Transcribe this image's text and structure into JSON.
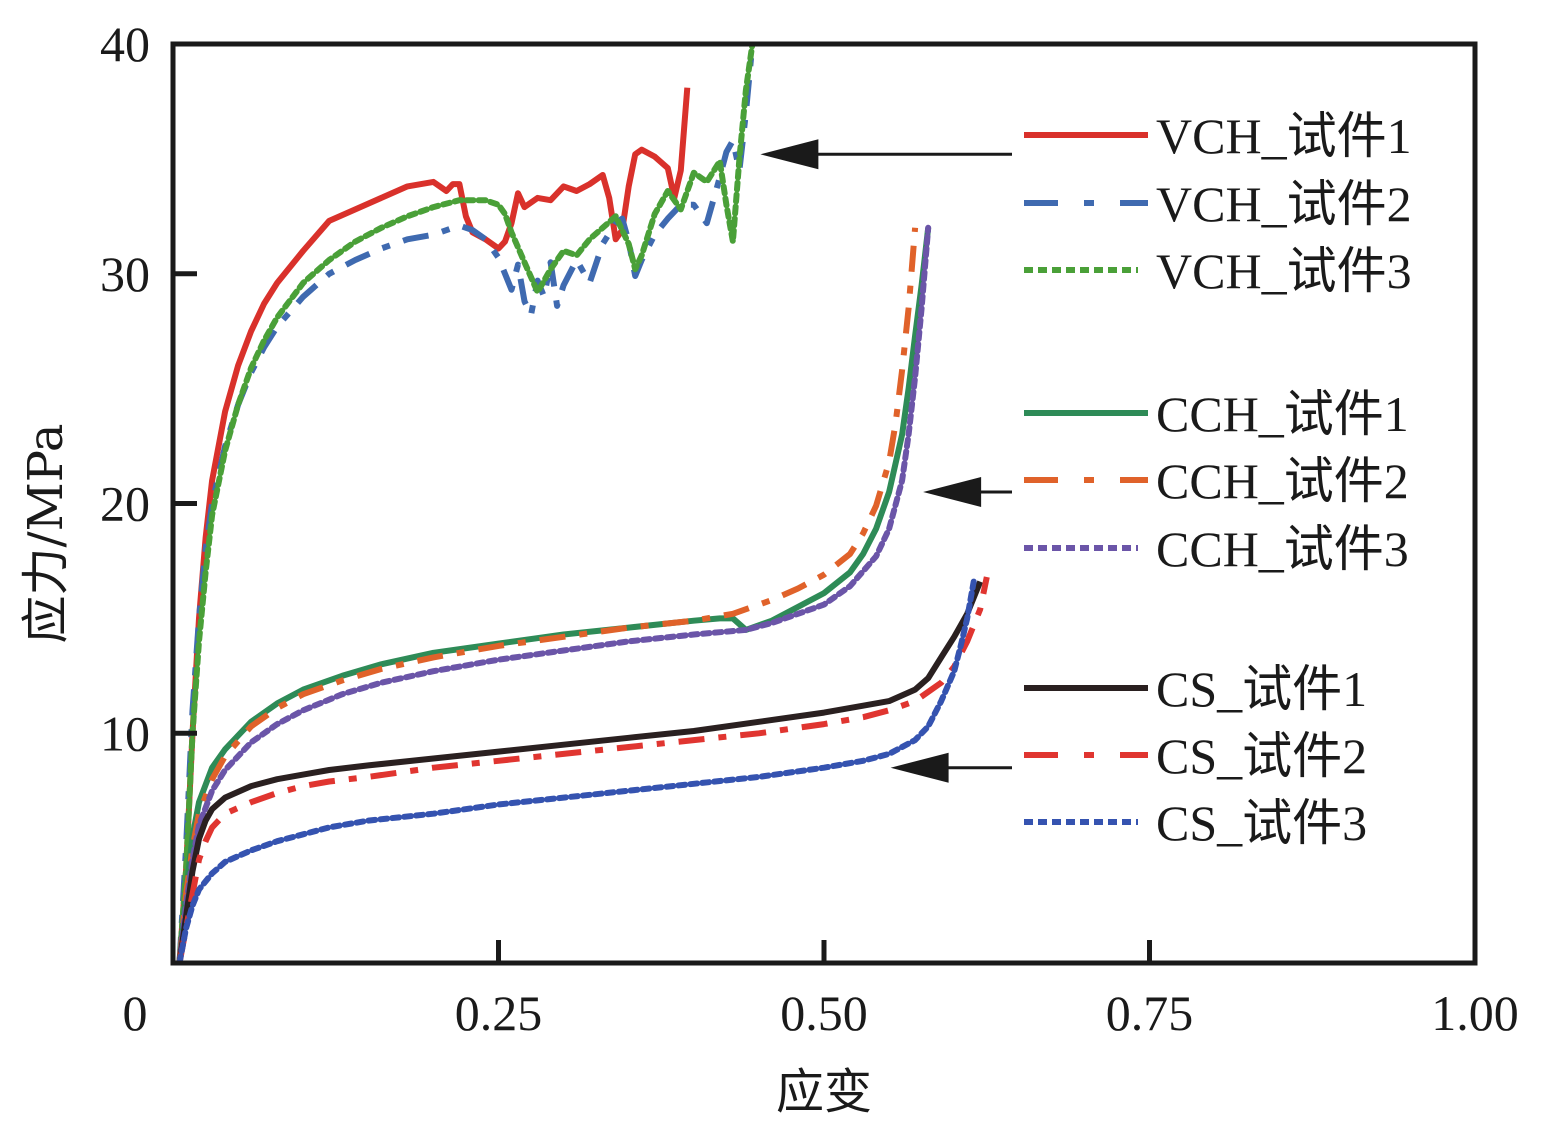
{
  "chart_data": {
    "type": "line",
    "title": "",
    "xlabel": "应变",
    "ylabel": "应力/MPa",
    "xlim": [
      0,
      1.0
    ],
    "ylim": [
      0,
      40
    ],
    "xticks": [
      0,
      0.25,
      0.5,
      0.75,
      1.0
    ],
    "xtick_labels": [
      "0",
      "0.25",
      "0.50",
      "0.75",
      "1.00"
    ],
    "yticks": [
      10,
      20,
      30,
      40
    ],
    "ytick_labels": [
      "10",
      "20",
      "30",
      "40"
    ],
    "grid": false,
    "legend_position": "right",
    "series": [
      {
        "name": "VCH_试件1",
        "color": "#d9312b",
        "style": "solid",
        "group": "VCH",
        "x": [
          0.005,
          0.01,
          0.015,
          0.02,
          0.025,
          0.03,
          0.04,
          0.05,
          0.06,
          0.07,
          0.08,
          0.1,
          0.12,
          0.14,
          0.16,
          0.18,
          0.2,
          0.21,
          0.215,
          0.22,
          0.225,
          0.23,
          0.24,
          0.25,
          0.255,
          0.26,
          0.265,
          0.27,
          0.28,
          0.29,
          0.3,
          0.31,
          0.32,
          0.33,
          0.335,
          0.34,
          0.345,
          0.35,
          0.355,
          0.36,
          0.37,
          0.38,
          0.385,
          0.39,
          0.395
        ],
        "y": [
          0,
          4,
          10,
          15,
          18.5,
          21,
          24,
          26,
          27.5,
          28.7,
          29.6,
          31,
          32.3,
          32.8,
          33.3,
          33.8,
          34,
          33.6,
          33.9,
          33.9,
          32.5,
          31.8,
          31.5,
          31.1,
          31.4,
          32.2,
          33.5,
          32.9,
          33.3,
          33.2,
          33.8,
          33.6,
          33.9,
          34.3,
          33.3,
          31.5,
          31.9,
          33.8,
          35.2,
          35.4,
          35.1,
          34.6,
          33.3,
          34.5,
          38.1
        ]
      },
      {
        "name": "VCH_试件2",
        "color": "#3f6ab0",
        "style": "dashdot",
        "group": "VCH",
        "x": [
          0.005,
          0.01,
          0.015,
          0.02,
          0.025,
          0.03,
          0.04,
          0.05,
          0.06,
          0.07,
          0.08,
          0.1,
          0.12,
          0.14,
          0.16,
          0.18,
          0.2,
          0.22,
          0.23,
          0.24,
          0.25,
          0.26,
          0.265,
          0.27,
          0.275,
          0.28,
          0.285,
          0.29,
          0.295,
          0.3,
          0.31,
          0.32,
          0.33,
          0.34,
          0.345,
          0.35,
          0.355,
          0.36,
          0.37,
          0.38,
          0.39,
          0.4,
          0.41,
          0.42,
          0.425,
          0.43,
          0.435,
          0.44,
          0.445
        ],
        "y": [
          0,
          5,
          11,
          15,
          18,
          20,
          22.5,
          24.3,
          25.7,
          26.8,
          27.7,
          29,
          30,
          30.6,
          31.1,
          31.5,
          31.7,
          32.1,
          31.9,
          31.5,
          30.7,
          29.3,
          30.4,
          28.8,
          28.2,
          29.7,
          29.0,
          30.5,
          28.6,
          29.5,
          30.6,
          29.6,
          31.3,
          32.2,
          32.4,
          31.4,
          29.9,
          30.6,
          31.7,
          32.4,
          33.0,
          33.0,
          32.2,
          34.2,
          35.3,
          35.8,
          34.5,
          37.0,
          40.0
        ]
      },
      {
        "name": "VCH_试件3",
        "color": "#4aa038",
        "style": "dotted",
        "group": "VCH",
        "x": [
          0.005,
          0.01,
          0.015,
          0.02,
          0.025,
          0.03,
          0.04,
          0.05,
          0.06,
          0.07,
          0.08,
          0.1,
          0.12,
          0.14,
          0.16,
          0.18,
          0.2,
          0.22,
          0.24,
          0.25,
          0.255,
          0.26,
          0.27,
          0.28,
          0.29,
          0.3,
          0.31,
          0.32,
          0.33,
          0.34,
          0.35,
          0.355,
          0.36,
          0.37,
          0.38,
          0.39,
          0.4,
          0.41,
          0.42,
          0.425,
          0.43,
          0.435,
          0.44,
          0.445
        ],
        "y": [
          0,
          4,
          10,
          14,
          17,
          19.5,
          22.3,
          24.3,
          25.9,
          27.1,
          28.1,
          29.6,
          30.6,
          31.4,
          32.0,
          32.5,
          32.9,
          33.2,
          33.2,
          33.0,
          32.6,
          31.8,
          30.5,
          29.2,
          30.2,
          31.0,
          30.8,
          31.5,
          32.0,
          32.5,
          31.3,
          30.2,
          30.8,
          32.6,
          33.6,
          32.8,
          34.4,
          34.0,
          34.9,
          33.0,
          31.4,
          35.0,
          38.0,
          40.0
        ]
      },
      {
        "name": "CCH_试件1",
        "color": "#2e8b57",
        "style": "solid",
        "group": "CCH",
        "x": [
          0.005,
          0.01,
          0.015,
          0.02,
          0.03,
          0.04,
          0.06,
          0.08,
          0.1,
          0.13,
          0.16,
          0.2,
          0.25,
          0.3,
          0.35,
          0.4,
          0.42,
          0.43,
          0.44,
          0.46,
          0.48,
          0.5,
          0.52,
          0.53,
          0.54,
          0.55,
          0.56,
          0.565,
          0.57,
          0.575,
          0.58
        ],
        "y": [
          0,
          3,
          5.5,
          7,
          8.5,
          9.3,
          10.5,
          11.3,
          11.9,
          12.5,
          13.0,
          13.5,
          13.9,
          14.3,
          14.6,
          14.9,
          15.0,
          15.0,
          14.5,
          14.9,
          15.5,
          16.1,
          17.0,
          17.8,
          18.9,
          20.5,
          23.0,
          25.0,
          27.3,
          29.5,
          32.0
        ]
      },
      {
        "name": "CCH_试件2",
        "color": "#e0622a",
        "style": "dashdot",
        "group": "CCH",
        "x": [
          0.005,
          0.01,
          0.015,
          0.02,
          0.03,
          0.04,
          0.06,
          0.08,
          0.1,
          0.13,
          0.16,
          0.2,
          0.25,
          0.3,
          0.35,
          0.4,
          0.43,
          0.46,
          0.48,
          0.5,
          0.52,
          0.53,
          0.54,
          0.55,
          0.555,
          0.56,
          0.565,
          0.57
        ],
        "y": [
          0,
          3,
          5,
          6.5,
          8,
          9.0,
          10.3,
          11.1,
          11.7,
          12.3,
          12.8,
          13.3,
          13.8,
          14.2,
          14.6,
          14.9,
          15.2,
          15.8,
          16.3,
          16.9,
          17.8,
          18.7,
          19.9,
          21.8,
          23.5,
          25.8,
          28.5,
          32.0
        ]
      },
      {
        "name": "CCH_试件3",
        "color": "#6b55a8",
        "style": "dotted",
        "group": "CCH",
        "x": [
          0.005,
          0.01,
          0.015,
          0.02,
          0.03,
          0.04,
          0.06,
          0.08,
          0.1,
          0.13,
          0.16,
          0.2,
          0.25,
          0.3,
          0.35,
          0.4,
          0.44,
          0.46,
          0.48,
          0.5,
          0.52,
          0.54,
          0.55,
          0.56,
          0.565,
          0.57,
          0.575,
          0.58
        ],
        "y": [
          0,
          2.5,
          4.5,
          6,
          7.5,
          8.4,
          9.6,
          10.4,
          11.0,
          11.7,
          12.2,
          12.7,
          13.2,
          13.6,
          14.0,
          14.3,
          14.5,
          14.8,
          15.2,
          15.6,
          16.4,
          17.7,
          18.9,
          21.0,
          23.0,
          25.5,
          28.5,
          32.0
        ]
      },
      {
        "name": "CS_试件1",
        "color": "#2a2020",
        "style": "solid",
        "group": "CS",
        "x": [
          0.005,
          0.01,
          0.015,
          0.02,
          0.025,
          0.03,
          0.04,
          0.06,
          0.08,
          0.1,
          0.12,
          0.15,
          0.2,
          0.25,
          0.3,
          0.35,
          0.4,
          0.45,
          0.5,
          0.53,
          0.55,
          0.57,
          0.58,
          0.59,
          0.6,
          0.61,
          0.62
        ],
        "y": [
          0,
          2,
          4,
          5.4,
          6.2,
          6.7,
          7.2,
          7.7,
          8.0,
          8.2,
          8.4,
          8.6,
          8.9,
          9.2,
          9.5,
          9.8,
          10.1,
          10.5,
          10.9,
          11.2,
          11.4,
          11.9,
          12.4,
          13.3,
          14.2,
          15.2,
          16.6
        ]
      },
      {
        "name": "CS_试件2",
        "color": "#e03530",
        "style": "dashdot",
        "group": "CS",
        "x": [
          0.005,
          0.01,
          0.015,
          0.02,
          0.025,
          0.03,
          0.04,
          0.06,
          0.08,
          0.1,
          0.12,
          0.15,
          0.2,
          0.25,
          0.3,
          0.35,
          0.4,
          0.45,
          0.5,
          0.53,
          0.55,
          0.57,
          0.59,
          0.6,
          0.61,
          0.62,
          0.625
        ],
        "y": [
          0,
          1.5,
          3,
          4.5,
          5.3,
          5.9,
          6.5,
          7.0,
          7.4,
          7.7,
          7.9,
          8.1,
          8.5,
          8.8,
          9.1,
          9.4,
          9.7,
          10.0,
          10.4,
          10.7,
          11.0,
          11.4,
          12.2,
          12.9,
          14.0,
          15.4,
          16.8
        ]
      },
      {
        "name": "CS_试件3",
        "color": "#3553b0",
        "style": "dotted",
        "group": "CS",
        "x": [
          0.005,
          0.01,
          0.015,
          0.02,
          0.03,
          0.04,
          0.06,
          0.08,
          0.1,
          0.12,
          0.15,
          0.2,
          0.25,
          0.3,
          0.35,
          0.4,
          0.45,
          0.5,
          0.53,
          0.55,
          0.57,
          0.58,
          0.59,
          0.6,
          0.605,
          0.61,
          0.615
        ],
        "y": [
          0,
          1.5,
          2.5,
          3.2,
          3.9,
          4.4,
          4.9,
          5.3,
          5.6,
          5.9,
          6.2,
          6.5,
          6.9,
          7.2,
          7.5,
          7.8,
          8.1,
          8.5,
          8.8,
          9.1,
          9.7,
          10.3,
          11.4,
          12.7,
          13.8,
          15.0,
          16.6
        ]
      }
    ],
    "legend": [
      {
        "label": "VCH_试件1",
        "series": 0
      },
      {
        "label": "VCH_试件2",
        "series": 1
      },
      {
        "label": "VCH_试件3",
        "series": 2
      },
      {
        "label": "CCH_试件1",
        "series": 3
      },
      {
        "label": "CCH_试件2",
        "series": 4
      },
      {
        "label": "CCH_试件3",
        "series": 5
      },
      {
        "label": "CS_试件1",
        "series": 6
      },
      {
        "label": "CS_试件2",
        "series": 7
      },
      {
        "label": "CS_试件3",
        "series": 8
      }
    ],
    "annotations": [
      {
        "type": "arrow",
        "points_to_group": "VCH",
        "target": [
          0.445,
          35.2
        ]
      },
      {
        "type": "arrow",
        "points_to_group": "CCH",
        "target": [
          0.57,
          20.5
        ]
      },
      {
        "type": "arrow",
        "points_to_group": "CS",
        "target": [
          0.545,
          8.5
        ]
      }
    ]
  }
}
